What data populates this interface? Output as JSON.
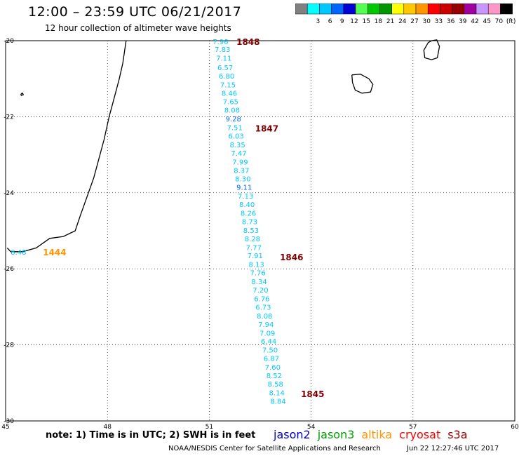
{
  "header": {
    "title": "12:00 – 23:59 UTC 06/21/2017",
    "subtitle": "12 hour collection of altimeter wave heights"
  },
  "color_scale": {
    "bins": [
      {
        "color": "#808080",
        "label": ""
      },
      {
        "color": "#00ffff",
        "label": "3"
      },
      {
        "color": "#00c8ff",
        "label": "6"
      },
      {
        "color": "#0064ff",
        "label": "9"
      },
      {
        "color": "#0000d2",
        "label": "12"
      },
      {
        "color": "#50ff50",
        "label": "15"
      },
      {
        "color": "#00c800",
        "label": "18"
      },
      {
        "color": "#009600",
        "label": "21"
      },
      {
        "color": "#ffff00",
        "label": "24"
      },
      {
        "color": "#ffc800",
        "label": "27"
      },
      {
        "color": "#ff9600",
        "label": "30"
      },
      {
        "color": "#ff0000",
        "label": "33"
      },
      {
        "color": "#c80000",
        "label": "36"
      },
      {
        "color": "#960000",
        "label": "39"
      },
      {
        "color": "#a000a0",
        "label": "42"
      },
      {
        "color": "#c896ff",
        "label": "45"
      },
      {
        "color": "#ff96c8",
        "label": "70"
      },
      {
        "color": "#000000",
        "label": "(ft)"
      }
    ]
  },
  "axes": {
    "lon_ticks": [
      "45",
      "48",
      "51",
      "54",
      "57",
      "60"
    ],
    "lat_ticks": [
      "-20",
      "-22",
      "-24",
      "-26",
      "-28",
      "-30"
    ]
  },
  "chart_data": {
    "type": "scatter",
    "x_range": [
      45,
      60
    ],
    "y_range": [
      -30,
      -20
    ],
    "track_points": [
      {
        "lat": -20.02,
        "lon": 51.1,
        "label": "7.96"
      },
      {
        "lat": -20.22,
        "lon": 51.16,
        "label": "7.83"
      },
      {
        "lat": -20.45,
        "lon": 51.2,
        "label": "7.11"
      },
      {
        "lat": -20.7,
        "lon": 51.24,
        "label": "6.57"
      },
      {
        "lat": -20.92,
        "lon": 51.28,
        "label": "6.80"
      },
      {
        "lat": -21.15,
        "lon": 51.32,
        "label": "7.15"
      },
      {
        "lat": -21.37,
        "lon": 51.36,
        "label": "8.46"
      },
      {
        "lat": -21.6,
        "lon": 51.4,
        "label": "7.65"
      },
      {
        "lat": -21.82,
        "lon": 51.44,
        "label": "8.08"
      },
      {
        "lat": -22.05,
        "lon": 51.48,
        "label": "9.28"
      },
      {
        "lat": -22.28,
        "lon": 51.52,
        "label": "7.51"
      },
      {
        "lat": -22.5,
        "lon": 51.56,
        "label": "6.03"
      },
      {
        "lat": -22.73,
        "lon": 51.6,
        "label": "8.35"
      },
      {
        "lat": -22.95,
        "lon": 51.64,
        "label": "7.47"
      },
      {
        "lat": -23.18,
        "lon": 51.68,
        "label": "7.99"
      },
      {
        "lat": -23.4,
        "lon": 51.72,
        "label": "8.37"
      },
      {
        "lat": -23.63,
        "lon": 51.76,
        "label": "8.30"
      },
      {
        "lat": -23.85,
        "lon": 51.8,
        "label": "9.11"
      },
      {
        "lat": -24.08,
        "lon": 51.84,
        "label": "7.13"
      },
      {
        "lat": -24.3,
        "lon": 51.88,
        "label": "8.40"
      },
      {
        "lat": -24.53,
        "lon": 51.92,
        "label": "8.26"
      },
      {
        "lat": -24.75,
        "lon": 51.96,
        "label": "8.73"
      },
      {
        "lat": -24.98,
        "lon": 52.0,
        "label": "8.53"
      },
      {
        "lat": -25.2,
        "lon": 52.04,
        "label": "8.28"
      },
      {
        "lat": -25.43,
        "lon": 52.08,
        "label": "7.77"
      },
      {
        "lat": -25.65,
        "lon": 52.12,
        "label": "7.91"
      },
      {
        "lat": -25.88,
        "lon": 52.16,
        "label": "8.13"
      },
      {
        "lat": -26.1,
        "lon": 52.2,
        "label": "7.76"
      },
      {
        "lat": -26.33,
        "lon": 52.24,
        "label": "8.34"
      },
      {
        "lat": -26.55,
        "lon": 52.28,
        "label": "7.20"
      },
      {
        "lat": -26.78,
        "lon": 52.32,
        "label": "6.76"
      },
      {
        "lat": -27.0,
        "lon": 52.36,
        "label": "6.73"
      },
      {
        "lat": -27.23,
        "lon": 52.4,
        "label": "8.08"
      },
      {
        "lat": -27.45,
        "lon": 52.44,
        "label": "7.94"
      },
      {
        "lat": -27.68,
        "lon": 52.48,
        "label": "7.09"
      },
      {
        "lat": -27.9,
        "lon": 52.52,
        "label": "6.44"
      },
      {
        "lat": -28.13,
        "lon": 52.56,
        "label": "7.50"
      },
      {
        "lat": -28.35,
        "lon": 52.6,
        "label": "6.87"
      },
      {
        "lat": -28.58,
        "lon": 52.64,
        "label": "7.60"
      },
      {
        "lat": -28.8,
        "lon": 52.68,
        "label": "8.52"
      },
      {
        "lat": -29.02,
        "lon": 52.72,
        "label": "8.58"
      },
      {
        "lat": -29.25,
        "lon": 52.76,
        "label": "8.14"
      },
      {
        "lat": -29.47,
        "lon": 52.8,
        "label": "8.84"
      },
      {
        "lat": -25.55,
        "lon": 45.15,
        "label": "8.48"
      }
    ],
    "time_labels": [
      {
        "text": "1848",
        "lat": -20.02,
        "lon": 51.8,
        "color": "#800000"
      },
      {
        "text": "1847",
        "lat": -22.3,
        "lon": 52.35,
        "color": "#800000"
      },
      {
        "text": "1846",
        "lat": -25.68,
        "lon": 53.08,
        "color": "#800000"
      },
      {
        "text": "1845",
        "lat": -29.28,
        "lon": 53.7,
        "color": "#800000"
      },
      {
        "text": "1444",
        "lat": -25.55,
        "lon": 46.1,
        "color": "#ff9600"
      }
    ],
    "coastlines": {
      "madagascar": [
        [
          48.55,
          -20.0
        ],
        [
          48.5,
          -20.3
        ],
        [
          48.45,
          -20.6
        ],
        [
          48.35,
          -21.0
        ],
        [
          48.2,
          -21.5
        ],
        [
          48.05,
          -22.0
        ],
        [
          47.9,
          -22.6
        ],
        [
          47.75,
          -23.1
        ],
        [
          47.6,
          -23.6
        ],
        [
          47.4,
          -24.1
        ],
        [
          47.2,
          -24.6
        ],
        [
          47.05,
          -25.0
        ],
        [
          46.7,
          -25.15
        ],
        [
          46.3,
          -25.2
        ],
        [
          45.9,
          -25.45
        ],
        [
          45.5,
          -25.55
        ],
        [
          45.15,
          -25.55
        ],
        [
          45.05,
          -25.45
        ]
      ],
      "reunion": [
        [
          55.2,
          -20.9
        ],
        [
          55.45,
          -20.88
        ],
        [
          55.7,
          -21.0
        ],
        [
          55.82,
          -21.15
        ],
        [
          55.75,
          -21.35
        ],
        [
          55.5,
          -21.38
        ],
        [
          55.3,
          -21.3
        ],
        [
          55.22,
          -21.1
        ],
        [
          55.2,
          -20.9
        ]
      ],
      "mauritius": [
        [
          57.55,
          -20.0
        ],
        [
          57.7,
          -19.98
        ],
        [
          57.78,
          -20.15
        ],
        [
          57.72,
          -20.45
        ],
        [
          57.55,
          -20.5
        ],
        [
          57.35,
          -20.45
        ],
        [
          57.32,
          -20.25
        ],
        [
          57.45,
          -20.05
        ],
        [
          57.55,
          -20.0
        ]
      ],
      "islet": [
        [
          45.45,
          -21.4
        ],
        [
          45.5,
          -21.38
        ],
        [
          45.52,
          -21.42
        ],
        [
          45.46,
          -21.44
        ],
        [
          45.45,
          -21.4
        ]
      ]
    }
  },
  "footer": {
    "note": "note: 1) Time is in UTC; 2) SWH is in feet",
    "satellites": [
      {
        "name": "jason2",
        "color": "#0000d2"
      },
      {
        "name": "jason3",
        "color": "#00a000"
      },
      {
        "name": "altika",
        "color": "#ff9600"
      },
      {
        "name": "cryosat",
        "color": "#ff0000"
      },
      {
        "name": "s3a",
        "color": "#960000"
      }
    ],
    "credit": "NOAA/NESDIS Center for Satellite Applications and Research",
    "timestamp": "Jun 22 12:27:46 UTC 2017"
  }
}
